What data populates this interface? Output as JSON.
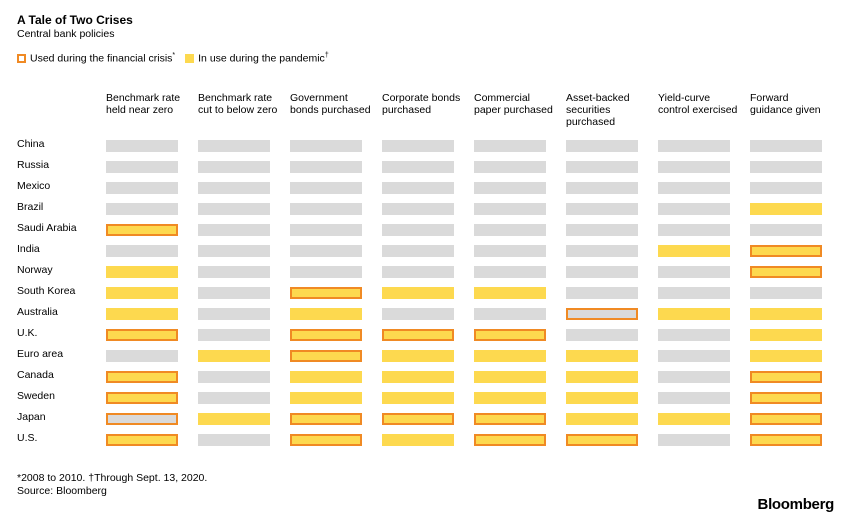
{
  "title": "A Tale of Two Crises",
  "subtitle": "Central bank policies",
  "legend": {
    "crisis_label": "Used during the financial crisis",
    "crisis_mark": "*",
    "pandemic_label": "In use during the pandemic",
    "pandemic_mark": "†"
  },
  "colors": {
    "pandemic": "#fdd94f",
    "crisis": "#f08a24",
    "none": "#dadada"
  },
  "chart_data": {
    "type": "table",
    "columns": [
      "Benchmark rate held near zero",
      "Benchmark rate cut to below zero",
      "Government bonds purchased",
      "Corporate bonds purchased",
      "Commercial paper purchased",
      "Asset-backed securities purchased",
      "Yield-curve control exercised",
      "Forward guidance given"
    ],
    "cell_codes": {
      "n": "not used",
      "p": "in use during the pandemic",
      "c": "used during the financial crisis",
      "b": "both"
    },
    "rows": [
      {
        "country": "China",
        "cells": [
          "n",
          "n",
          "n",
          "n",
          "n",
          "n",
          "n",
          "n"
        ]
      },
      {
        "country": "Russia",
        "cells": [
          "n",
          "n",
          "n",
          "n",
          "n",
          "n",
          "n",
          "n"
        ]
      },
      {
        "country": "Mexico",
        "cells": [
          "n",
          "n",
          "n",
          "n",
          "n",
          "n",
          "n",
          "n"
        ]
      },
      {
        "country": "Brazil",
        "cells": [
          "n",
          "n",
          "n",
          "n",
          "n",
          "n",
          "n",
          "p"
        ]
      },
      {
        "country": "Saudi Arabia",
        "cells": [
          "b",
          "n",
          "n",
          "n",
          "n",
          "n",
          "n",
          "n"
        ]
      },
      {
        "country": "India",
        "cells": [
          "n",
          "n",
          "n",
          "n",
          "n",
          "n",
          "p",
          "b"
        ]
      },
      {
        "country": "Norway",
        "cells": [
          "p",
          "n",
          "n",
          "n",
          "n",
          "n",
          "n",
          "b"
        ]
      },
      {
        "country": "South Korea",
        "cells": [
          "p",
          "n",
          "b",
          "p",
          "p",
          "n",
          "n",
          "n"
        ]
      },
      {
        "country": "Australia",
        "cells": [
          "p",
          "n",
          "p",
          "n",
          "n",
          "c",
          "p",
          "p"
        ]
      },
      {
        "country": "U.K.",
        "cells": [
          "b",
          "n",
          "b",
          "b",
          "b",
          "n",
          "n",
          "p"
        ]
      },
      {
        "country": "Euro area",
        "cells": [
          "n",
          "p",
          "b",
          "p",
          "p",
          "p",
          "n",
          "p"
        ]
      },
      {
        "country": "Canada",
        "cells": [
          "b",
          "n",
          "p",
          "p",
          "p",
          "p",
          "n",
          "b"
        ]
      },
      {
        "country": "Sweden",
        "cells": [
          "b",
          "n",
          "p",
          "p",
          "p",
          "p",
          "n",
          "b"
        ]
      },
      {
        "country": "Japan",
        "cells": [
          "c",
          "p",
          "b",
          "b",
          "b",
          "p",
          "p",
          "b"
        ]
      },
      {
        "country": "U.S.",
        "cells": [
          "b",
          "n",
          "b",
          "p",
          "b",
          "b",
          "n",
          "b"
        ]
      }
    ]
  },
  "footnote": "*2008 to 2010. †Through Sept. 13, 2020.",
  "source": "Source: Bloomberg",
  "brand": "Bloomberg"
}
